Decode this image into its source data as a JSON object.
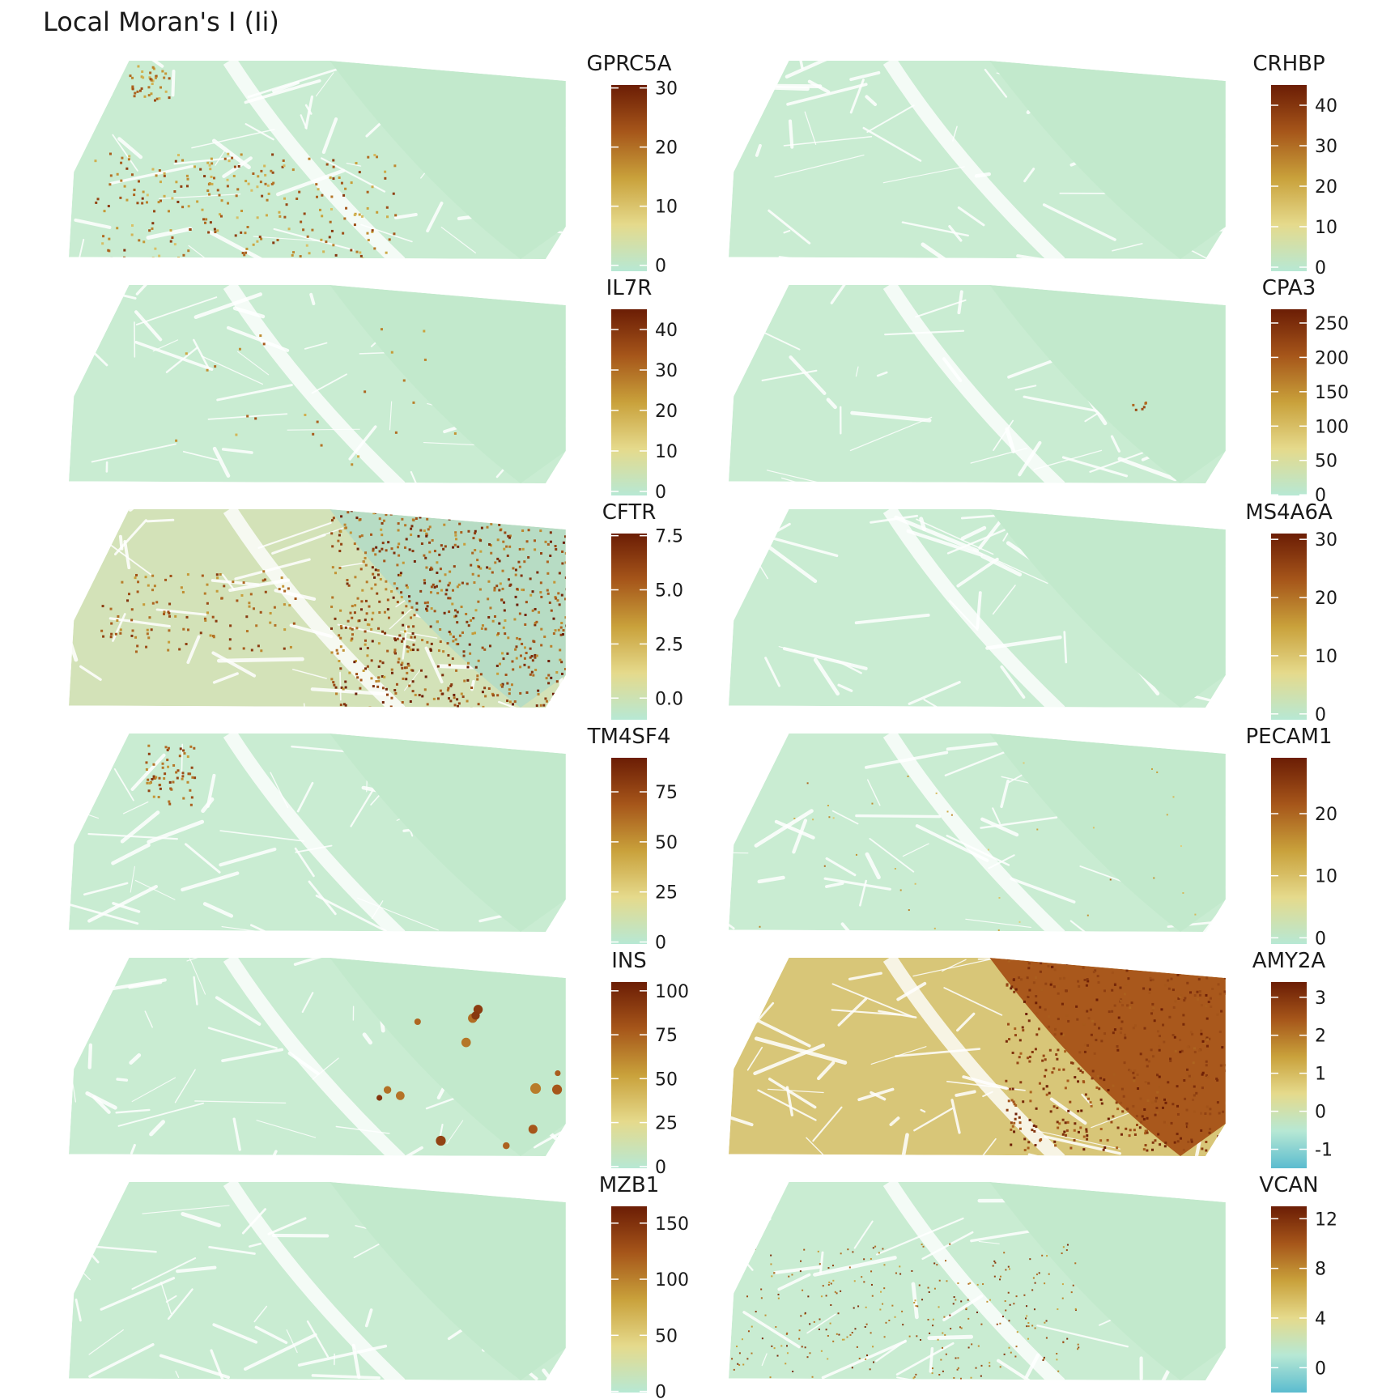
{
  "title": "Local Moran's I (Ii)",
  "colors": {
    "ramp": [
      "#5bbccf",
      "#b7e8d4",
      "#e5da8c",
      "#c9a13b",
      "#a6561a",
      "#6b1d05"
    ],
    "tissue_base": "#c9ecd2"
  },
  "chart_data": [
    {
      "type": "heatmap",
      "gene": "GPRC5A",
      "colorbar_ticks": [
        0,
        10,
        20,
        30
      ],
      "range": [
        -1,
        30.5
      ],
      "hotspots": "clustered ring-like foci in lower-left exocrine region"
    },
    {
      "type": "heatmap",
      "gene": "CRHBP",
      "colorbar_ticks": [
        0,
        10,
        20,
        30,
        40
      ],
      "range": [
        -1,
        45
      ],
      "hotspots": "none prominent"
    },
    {
      "type": "heatmap",
      "gene": "IL7R",
      "colorbar_ticks": [
        0,
        10,
        20,
        30,
        40
      ],
      "range": [
        -1,
        45
      ],
      "hotspots": "sparse small foci"
    },
    {
      "type": "heatmap",
      "gene": "CPA3",
      "colorbar_ticks": [
        0,
        50,
        100,
        150,
        200,
        250
      ],
      "range": [
        -1,
        270
      ],
      "hotspots": "single small focus near center-right"
    },
    {
      "type": "heatmap",
      "gene": "CFTR",
      "colorbar_ticks": [
        "0.0",
        "2.5",
        "5.0",
        "7.5"
      ],
      "range": [
        -1,
        7.6
      ],
      "hotspots": "dense speckle in upper-right lobe; diffuse elevated background"
    },
    {
      "type": "heatmap",
      "gene": "MS4A6A",
      "colorbar_ticks": [
        0,
        10,
        20,
        30
      ],
      "range": [
        -1,
        31
      ],
      "hotspots": "none prominent"
    },
    {
      "type": "heatmap",
      "gene": "TM4SF4",
      "colorbar_ticks": [
        0,
        25,
        50,
        75
      ],
      "range": [
        -1,
        92
      ],
      "hotspots": "linear streak upper-left"
    },
    {
      "type": "heatmap",
      "gene": "PECAM1",
      "colorbar_ticks": [
        0,
        10,
        20
      ],
      "range": [
        -1,
        29
      ],
      "hotspots": "scattered faint dots"
    },
    {
      "type": "heatmap",
      "gene": "INS",
      "colorbar_ticks": [
        0,
        25,
        50,
        75,
        100
      ],
      "range": [
        -1,
        105
      ],
      "hotspots": "discrete islet blobs in right lobe"
    },
    {
      "type": "heatmap",
      "gene": "AMY2A",
      "colorbar_ticks": [
        -1,
        0,
        1,
        2,
        3
      ],
      "range": [
        -1.5,
        3.4
      ],
      "hotspots": "right lobe strongly positive; rest moderately positive"
    },
    {
      "type": "heatmap",
      "gene": "MZB1",
      "colorbar_ticks": [
        0,
        50,
        100,
        150
      ],
      "range": [
        -1,
        165
      ],
      "hotspots": "none prominent"
    },
    {
      "type": "heatmap",
      "gene": "VCAN",
      "colorbar_ticks": [
        0,
        4,
        8,
        12
      ],
      "range": [
        -2,
        13
      ],
      "hotspots": "scattered dots, denser lower-left and center"
    }
  ]
}
